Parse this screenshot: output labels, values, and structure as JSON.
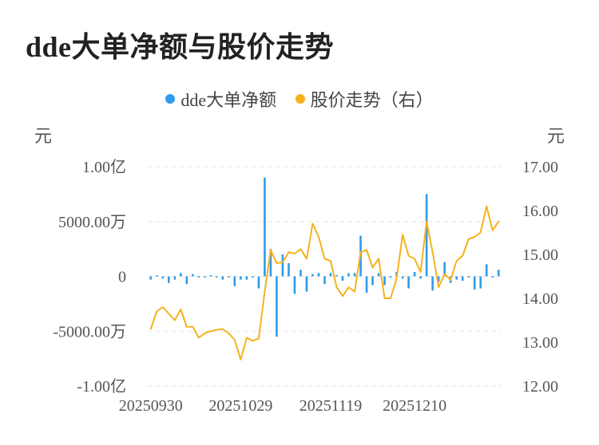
{
  "title": "dde大单净额与股价走势",
  "chart_data": {
    "type": "bar+line",
    "left_axis": {
      "unit": "元",
      "ticks": [
        "1.00亿",
        "5000.00万",
        "0",
        "-5000.00万",
        "-1.00亿"
      ],
      "ylim": [
        -100000000,
        100000000
      ]
    },
    "right_axis": {
      "unit": "元",
      "ticks": [
        "17.00",
        "16.00",
        "15.00",
        "14.00",
        "13.00",
        "12.00"
      ],
      "ylim": [
        12,
        17
      ]
    },
    "x_ticks": [
      "20250930",
      "20251029",
      "20251119",
      "20251210"
    ],
    "series": [
      {
        "name": "dde大单净额",
        "type": "bar",
        "axis": "left",
        "color": "#2f9bea",
        "values": [
          -3000000,
          1000000,
          -2000000,
          -6000000,
          -3000000,
          3000000,
          -7000000,
          2000000,
          0,
          -1000000,
          1000000,
          0,
          -3000000,
          0,
          -9000000,
          -3000000,
          -3000000,
          0,
          -11000000,
          90000000,
          25000000,
          -55000000,
          20000000,
          12000000,
          -16000000,
          6000000,
          -14000000,
          2000000,
          3000000,
          -7000000,
          3000000,
          1000000,
          -4000000,
          3000000,
          3000000,
          37000000,
          -15000000,
          -8000000,
          3000000,
          -8000000,
          -1000000,
          4000000,
          -2000000,
          -11000000,
          4000000,
          -2000000,
          75000000,
          -13000000,
          -5000000,
          13000000,
          -6000000,
          -3000000,
          -4000000,
          0,
          -12000000,
          -11000000,
          11000000,
          -1000000,
          6000000
        ]
      },
      {
        "name": "股价走势（右）",
        "type": "line",
        "axis": "right",
        "color": "#f5b21c",
        "values": [
          13.3,
          13.7,
          13.8,
          13.65,
          13.5,
          13.75,
          13.35,
          13.35,
          13.1,
          13.2,
          13.25,
          13.28,
          13.3,
          13.2,
          13.05,
          12.6,
          13.1,
          13.03,
          13.08,
          14.15,
          15.1,
          14.8,
          14.82,
          15.05,
          15.02,
          15.12,
          14.9,
          15.7,
          15.4,
          14.9,
          14.85,
          14.25,
          14.05,
          14.25,
          14.15,
          15.05,
          15.1,
          14.7,
          14.9,
          14.0,
          14.0,
          14.45,
          15.45,
          14.97,
          14.9,
          14.6,
          15.75,
          15.05,
          14.25,
          14.55,
          14.42,
          14.85,
          14.97,
          15.35,
          15.4,
          15.5,
          16.1,
          15.55,
          15.75
        ]
      }
    ],
    "grid": true
  }
}
